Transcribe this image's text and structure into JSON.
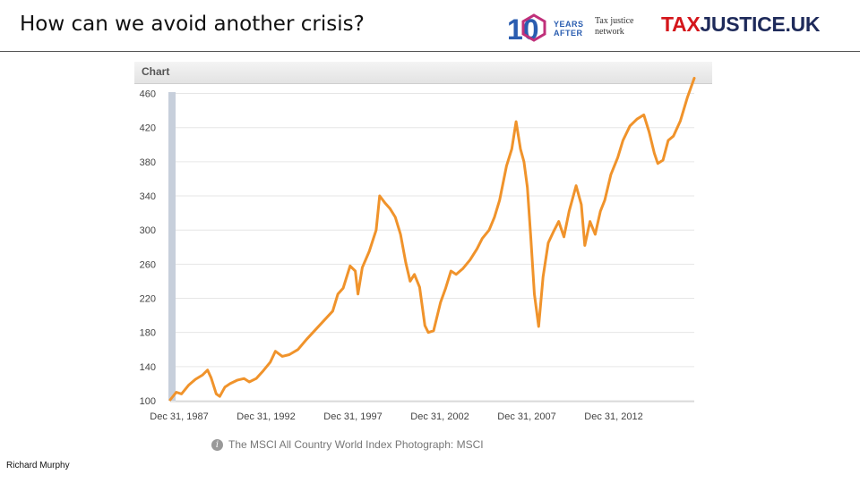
{
  "slide": {
    "title": "How can we avoid another crisis?",
    "author": "Richard Murphy"
  },
  "logos": {
    "ten_years_digits": "10",
    "ten_years_line1": "YEARS",
    "ten_years_line2": "AFTER",
    "tjn_line1": "Tax justice",
    "tjn_line2": "network",
    "tjuk_part1": "TAX",
    "tjuk_part2": "JUSTICE",
    "tjuk_part3": ".UK",
    "colors": {
      "tjuk_red": "#d4161b",
      "tjuk_navy": "#1e2a5a",
      "ten_blue": "#2a5db0",
      "ten_pink": "#c0307a"
    }
  },
  "chart_panel": {
    "header_label": "Chart",
    "caption": "The MSCI All Country World Index Photograph: MSCI",
    "info_icon": "info-icon"
  },
  "chart_data": {
    "type": "line",
    "title": "",
    "xlabel": "",
    "ylabel": "",
    "x_tick_labels": [
      "Dec 31, 1987",
      "Dec 31, 1992",
      "Dec 31, 1997",
      "Dec 31, 2002",
      "Dec 31, 2007",
      "Dec 31, 2012"
    ],
    "x_range": [
      1987.95,
      2018.1
    ],
    "y_ticks": [
      100,
      140,
      180,
      220,
      260,
      300,
      340,
      380,
      420,
      460
    ],
    "ylim": [
      100,
      470
    ],
    "grid": true,
    "line_color": "#f0932b",
    "series": [
      {
        "name": "",
        "points": [
          [
            1987.95,
            101
          ],
          [
            1988.3,
            110
          ],
          [
            1988.6,
            108
          ],
          [
            1989.0,
            118
          ],
          [
            1989.4,
            125
          ],
          [
            1989.8,
            130
          ],
          [
            1990.1,
            136
          ],
          [
            1990.3,
            127
          ],
          [
            1990.6,
            108
          ],
          [
            1990.8,
            105
          ],
          [
            1991.1,
            116
          ],
          [
            1991.4,
            120
          ],
          [
            1991.8,
            124
          ],
          [
            1992.2,
            126
          ],
          [
            1992.5,
            122
          ],
          [
            1992.9,
            126
          ],
          [
            1993.3,
            135
          ],
          [
            1993.7,
            145
          ],
          [
            1994.0,
            158
          ],
          [
            1994.4,
            152
          ],
          [
            1994.8,
            154
          ],
          [
            1995.3,
            160
          ],
          [
            1995.8,
            172
          ],
          [
            1996.3,
            183
          ],
          [
            1996.8,
            194
          ],
          [
            1997.3,
            205
          ],
          [
            1997.6,
            225
          ],
          [
            1997.9,
            232
          ],
          [
            1998.3,
            258
          ],
          [
            1998.6,
            252
          ],
          [
            1998.75,
            225
          ],
          [
            1999.0,
            256
          ],
          [
            1999.4,
            275
          ],
          [
            1999.8,
            300
          ],
          [
            2000.0,
            340
          ],
          [
            2000.3,
            332
          ],
          [
            2000.6,
            325
          ],
          [
            2000.9,
            315
          ],
          [
            2001.2,
            295
          ],
          [
            2001.5,
            262
          ],
          [
            2001.75,
            240
          ],
          [
            2002.0,
            248
          ],
          [
            2002.3,
            233
          ],
          [
            2002.6,
            188
          ],
          [
            2002.8,
            180
          ],
          [
            2003.1,
            182
          ],
          [
            2003.5,
            215
          ],
          [
            2003.8,
            232
          ],
          [
            2004.1,
            252
          ],
          [
            2004.4,
            248
          ],
          [
            2004.8,
            255
          ],
          [
            2005.2,
            265
          ],
          [
            2005.6,
            278
          ],
          [
            2005.9,
            290
          ],
          [
            2006.3,
            300
          ],
          [
            2006.6,
            315
          ],
          [
            2006.9,
            335
          ],
          [
            2007.3,
            375
          ],
          [
            2007.6,
            395
          ],
          [
            2007.85,
            427
          ],
          [
            2008.1,
            395
          ],
          [
            2008.3,
            380
          ],
          [
            2008.5,
            350
          ],
          [
            2008.7,
            290
          ],
          [
            2008.9,
            225
          ],
          [
            2009.15,
            187
          ],
          [
            2009.4,
            245
          ],
          [
            2009.7,
            285
          ],
          [
            2010.0,
            298
          ],
          [
            2010.3,
            310
          ],
          [
            2010.6,
            292
          ],
          [
            2010.9,
            322
          ],
          [
            2011.3,
            352
          ],
          [
            2011.6,
            330
          ],
          [
            2011.8,
            282
          ],
          [
            2012.1,
            310
          ],
          [
            2012.4,
            295
          ],
          [
            2012.7,
            322
          ],
          [
            2012.95,
            335
          ],
          [
            2013.3,
            365
          ],
          [
            2013.7,
            385
          ],
          [
            2014.0,
            405
          ],
          [
            2014.4,
            422
          ],
          [
            2014.8,
            430
          ],
          [
            2015.2,
            435
          ],
          [
            2015.5,
            415
          ],
          [
            2015.8,
            390
          ],
          [
            2016.0,
            378
          ],
          [
            2016.3,
            382
          ],
          [
            2016.6,
            405
          ],
          [
            2016.9,
            410
          ],
          [
            2017.3,
            428
          ],
          [
            2017.7,
            455
          ],
          [
            2018.1,
            478
          ]
        ]
      }
    ]
  }
}
